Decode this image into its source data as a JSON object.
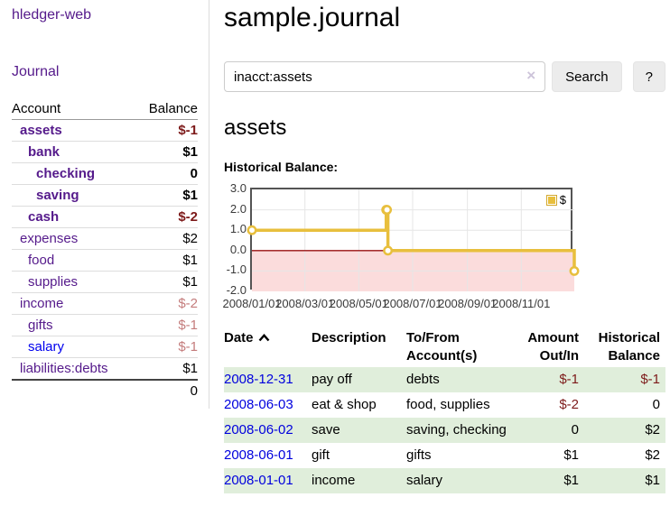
{
  "app": {
    "brand": "hledger-web",
    "nav_journal_label": "Journal"
  },
  "sidebar": {
    "columns": {
      "account": "Account",
      "balance": "Balance"
    },
    "accounts": [
      {
        "name": "assets",
        "depth": 0,
        "balance": "$-1",
        "bold": true,
        "neg": "strong",
        "link_color": "purple"
      },
      {
        "name": "bank",
        "depth": 1,
        "balance": "$1",
        "bold": true,
        "neg": "none",
        "link_color": "purple"
      },
      {
        "name": "checking",
        "depth": 2,
        "balance": "0",
        "bold": true,
        "neg": "none",
        "link_color": "purple"
      },
      {
        "name": "saving",
        "depth": 2,
        "balance": "$1",
        "bold": true,
        "neg": "none",
        "link_color": "purple"
      },
      {
        "name": "cash",
        "depth": 1,
        "balance": "$-2",
        "bold": true,
        "neg": "strong",
        "link_color": "purple"
      },
      {
        "name": "expenses",
        "depth": 0,
        "balance": "$2",
        "bold": false,
        "neg": "none",
        "link_color": "purple"
      },
      {
        "name": "food",
        "depth": 1,
        "balance": "$1",
        "bold": false,
        "neg": "none",
        "link_color": "purple"
      },
      {
        "name": "supplies",
        "depth": 1,
        "balance": "$1",
        "bold": false,
        "neg": "none",
        "link_color": "purple"
      },
      {
        "name": "income",
        "depth": 0,
        "balance": "$-2",
        "bold": false,
        "neg": "soft",
        "link_color": "purple"
      },
      {
        "name": "gifts",
        "depth": 1,
        "balance": "$-1",
        "bold": false,
        "neg": "soft",
        "link_color": "purple"
      },
      {
        "name": "salary",
        "depth": 1,
        "balance": "$-1",
        "bold": false,
        "neg": "soft",
        "link_color": "blue"
      },
      {
        "name": "liabilities:debts",
        "depth": 0,
        "balance": "$1",
        "bold": false,
        "neg": "none",
        "link_color": "purple"
      }
    ],
    "total": "0"
  },
  "header": {
    "title": "sample.journal"
  },
  "search": {
    "value": "inacct:assets",
    "clear_icon": "×",
    "button_label": "Search",
    "help_label": "?"
  },
  "account_page": {
    "heading": "assets",
    "chart_label": "Historical Balance:"
  },
  "chart_data": {
    "type": "line",
    "step": true,
    "title": "Historical Balance",
    "series": [
      {
        "name": "$",
        "color": "#e8bf3d",
        "points": [
          {
            "date": "2008-01-01",
            "value": 1
          },
          {
            "date": "2008-06-01",
            "value": 2
          },
          {
            "date": "2008-06-02",
            "value": 2
          },
          {
            "date": "2008-06-03",
            "value": 0
          },
          {
            "date": "2008-12-31",
            "value": -1
          }
        ]
      }
    ],
    "xlim": [
      "2008-01-01",
      "2008-12-31"
    ],
    "ylim": [
      -2,
      3
    ],
    "x_ticks": [
      "2008/01/01",
      "2008/03/01",
      "2008/05/01",
      "2008/07/01",
      "2008/09/01",
      "2008/11/01"
    ],
    "y_ticks": [
      3.0,
      2.0,
      1.0,
      0.0,
      -1.0,
      -2.0
    ],
    "grid": true,
    "grid_color": "#e6e6e6",
    "negative_region_color": "#fbdcdc",
    "zero_line_color": "#991111",
    "legend": {
      "label": "$",
      "position": "top-right"
    }
  },
  "register": {
    "columns": [
      {
        "label": "Date",
        "align": "left",
        "sortable": true,
        "sort": "asc"
      },
      {
        "label": "To/From Account(s)",
        "align": "left"
      },
      {
        "label": "Description",
        "align": "left"
      },
      {
        "label": "Amount Out/In",
        "align": "right"
      },
      {
        "label": "Historical Balance",
        "align": "right"
      }
    ],
    "column_order": [
      "Date",
      "Description",
      "To/From Account(s)",
      "Amount Out/In",
      "Historical Balance"
    ],
    "rows": [
      {
        "date": "2008-12-31",
        "description": "pay off",
        "accounts": "debts",
        "amount": "$-1",
        "amount_neg": true,
        "balance": "$-1",
        "balance_neg": true,
        "green": true
      },
      {
        "date": "2008-06-03",
        "description": "eat & shop",
        "accounts": "food, supplies",
        "amount": "$-2",
        "amount_neg": true,
        "balance": "0",
        "balance_neg": false,
        "green": false
      },
      {
        "date": "2008-06-02",
        "description": "save",
        "accounts": "saving, checking",
        "amount": "0",
        "amount_neg": false,
        "balance": "$2",
        "balance_neg": false,
        "green": true
      },
      {
        "date": "2008-06-01",
        "description": "gift",
        "accounts": "gifts",
        "amount": "$1",
        "amount_neg": false,
        "balance": "$2",
        "balance_neg": false,
        "green": false
      },
      {
        "date": "2008-01-01",
        "description": "income",
        "accounts": "salary",
        "amount": "$1",
        "amount_neg": false,
        "balance": "$1",
        "balance_neg": false,
        "green": true
      }
    ]
  }
}
